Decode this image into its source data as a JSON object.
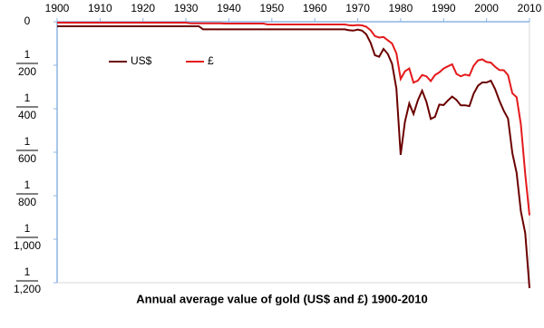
{
  "chart_data": {
    "type": "line",
    "title": "Annual average value of gold (US$ and £) 1900-2010",
    "x": [
      1900,
      1901,
      1902,
      1903,
      1904,
      1905,
      1906,
      1907,
      1908,
      1909,
      1910,
      1911,
      1912,
      1913,
      1914,
      1915,
      1916,
      1917,
      1918,
      1919,
      1920,
      1921,
      1922,
      1923,
      1924,
      1925,
      1926,
      1927,
      1928,
      1929,
      1930,
      1931,
      1932,
      1933,
      1934,
      1935,
      1936,
      1937,
      1938,
      1939,
      1940,
      1941,
      1942,
      1943,
      1944,
      1945,
      1946,
      1947,
      1948,
      1949,
      1950,
      1951,
      1952,
      1953,
      1954,
      1955,
      1956,
      1957,
      1958,
      1959,
      1960,
      1961,
      1962,
      1963,
      1964,
      1965,
      1966,
      1967,
      1968,
      1969,
      1970,
      1971,
      1972,
      1973,
      1974,
      1975,
      1976,
      1977,
      1978,
      1979,
      1980,
      1981,
      1982,
      1983,
      1984,
      1985,
      1986,
      1987,
      1988,
      1989,
      1990,
      1991,
      1992,
      1993,
      1994,
      1995,
      1996,
      1997,
      1998,
      1999,
      2000,
      2001,
      2002,
      2003,
      2004,
      2005,
      2006,
      2007,
      2008,
      2009,
      2010
    ],
    "series": [
      {
        "name": "US$",
        "color": "#6b0000",
        "values": [
          20.67,
          20.67,
          20.67,
          20.67,
          20.67,
          20.67,
          20.67,
          20.67,
          20.67,
          20.67,
          20.67,
          20.67,
          20.67,
          20.67,
          20.67,
          20.67,
          20.67,
          20.67,
          20.67,
          20.67,
          20.67,
          20.67,
          20.67,
          20.67,
          20.67,
          20.67,
          20.67,
          20.67,
          20.67,
          20.67,
          20.67,
          20.67,
          20.67,
          20.67,
          35,
          35,
          35,
          35,
          35,
          35,
          35,
          35,
          35,
          35,
          35,
          35,
          35,
          35,
          35,
          35,
          35,
          35,
          35,
          35,
          35,
          35,
          35,
          35,
          35,
          35,
          35,
          35,
          35,
          35,
          35,
          35,
          35,
          35,
          39,
          41,
          36,
          41,
          58,
          97,
          154,
          161,
          125,
          148,
          193,
          307,
          612,
          460,
          376,
          424,
          361,
          317,
          368,
          447,
          437,
          381,
          383,
          362,
          344,
          360,
          384,
          384,
          388,
          331,
          294,
          279,
          279,
          271,
          310,
          363,
          409,
          445,
          604,
          695,
          872,
          972,
          1225
        ]
      },
      {
        "name": "£",
        "color": "#e41a1c",
        "values": [
          4.25,
          4.25,
          4.25,
          4.25,
          4.25,
          4.25,
          4.25,
          4.25,
          4.25,
          4.25,
          4.25,
          4.25,
          4.25,
          4.25,
          4.25,
          4.25,
          4.25,
          4.25,
          4.25,
          4.25,
          4.25,
          4.25,
          4.25,
          4.25,
          4.25,
          4.25,
          4.25,
          4.25,
          4.25,
          4.25,
          4.25,
          7,
          7,
          7,
          7,
          7,
          7,
          7,
          7,
          8.4,
          8.4,
          8.4,
          8.4,
          8.4,
          8.4,
          8.4,
          8.4,
          8.4,
          8.4,
          12.4,
          12.4,
          12.4,
          12.4,
          12.4,
          12.4,
          12.4,
          12.4,
          12.4,
          12.4,
          12.4,
          12.4,
          12.4,
          12.4,
          12.4,
          12.4,
          12.4,
          12.4,
          12.4,
          16.4,
          17,
          15,
          16.8,
          23,
          39,
          66,
          73,
          70,
          85,
          100,
          145,
          263,
          228,
          215,
          280,
          271,
          245,
          251,
          273,
          245,
          233,
          215,
          205,
          196,
          240,
          251,
          243,
          248,
          202,
          178,
          173,
          185,
          188,
          207,
          222,
          223,
          245,
          329,
          347,
          472,
          700,
          890
        ]
      }
    ],
    "xlim": [
      1900,
      2010
    ],
    "xticks": [
      1900,
      1910,
      1920,
      1930,
      1940,
      1950,
      1960,
      1970,
      1980,
      1990,
      2000,
      2010
    ],
    "ylim": [
      0,
      1200
    ],
    "y_inverted": true,
    "yticks": [
      0,
      200,
      400,
      600,
      800,
      {
        "value": 1000,
        "label": "1,000"
      },
      {
        "value": 1200,
        "label": "1,200"
      }
    ],
    "y_tick_numerator": "1",
    "legend": "upper left"
  }
}
